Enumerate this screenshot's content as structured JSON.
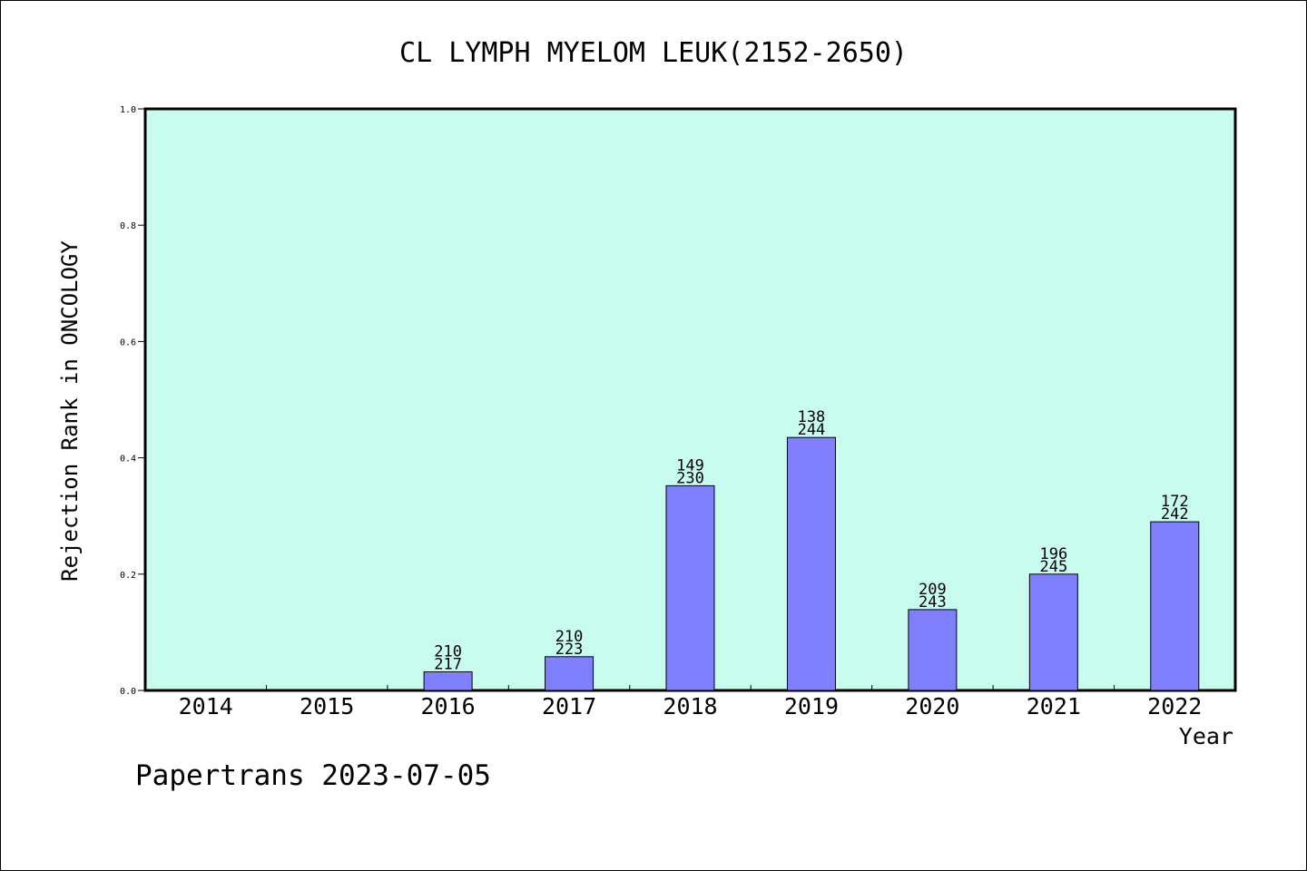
{
  "chart_data": {
    "type": "bar",
    "title": "CL LYMPH MYELOM LEUK(2152-2650)",
    "xlabel": "Year",
    "ylabel": "Rejection Rank in ONCOLOGY",
    "ylim": [
      0,
      1.0
    ],
    "yticks": [
      "0.0",
      "0.2",
      "0.4",
      "0.6",
      "0.8",
      "1.0"
    ],
    "categories": [
      "2014",
      "2015",
      "2016",
      "2017",
      "2018",
      "2019",
      "2020",
      "2021",
      "2022"
    ],
    "values": [
      0,
      0,
      0.032,
      0.058,
      0.352,
      0.435,
      0.139,
      0.2,
      0.29
    ],
    "bar_labels": [
      null,
      null,
      [
        "210",
        "217"
      ],
      [
        "210",
        "223"
      ],
      [
        "149",
        "230"
      ],
      [
        "138",
        "244"
      ],
      [
        "209",
        "243"
      ],
      [
        "196",
        "245"
      ],
      [
        "172",
        "242"
      ]
    ],
    "grid": false,
    "legend": "none",
    "colors": {
      "plot_background": "#c8fcef",
      "bar_fill": "#8080ff",
      "bar_stroke": "#000000"
    }
  },
  "footer": {
    "text": "Papertrans 2023-07-05"
  }
}
